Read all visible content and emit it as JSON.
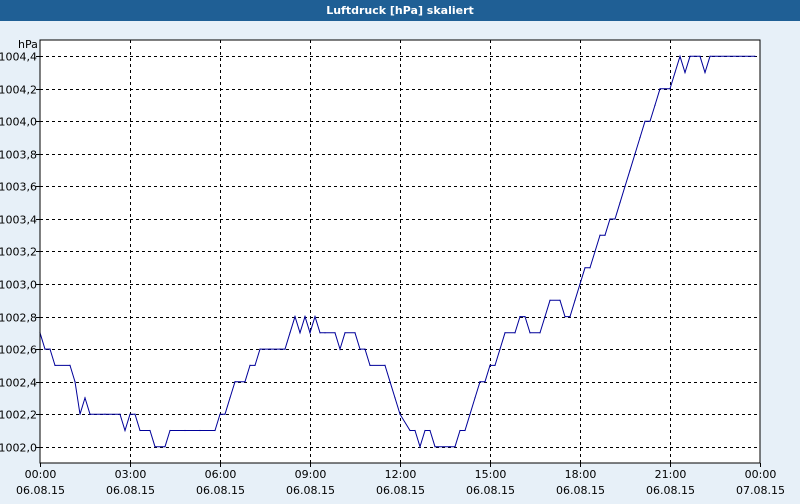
{
  "header": {
    "title": "Luftdruck [hPa] skaliert"
  },
  "colors": {
    "header_bg": "#1f5f95",
    "page_bg": "#e7f0f8",
    "plot_bg": "#ffffff",
    "line": "#00009a",
    "grid": "#000000"
  },
  "chart_data": {
    "type": "line",
    "title": "Luftdruck [hPa] skaliert",
    "ylabel": "hPa",
    "xlabel": "",
    "ylim": [
      1001.9,
      1004.5
    ],
    "xlim": [
      "06.08.15 00:00",
      "07.08.15 00:00"
    ],
    "grid": true,
    "y_ticks": [
      "1002,0",
      "1002,2",
      "1002,4",
      "1002,6",
      "1002,8",
      "1003,0",
      "1003,2",
      "1003,4",
      "1003,6",
      "1003,8",
      "1004,0",
      "1004,2",
      "1004,4"
    ],
    "y_tick_values": [
      1002.0,
      1002.2,
      1002.4,
      1002.6,
      1002.8,
      1003.0,
      1003.2,
      1003.4,
      1003.6,
      1003.8,
      1004.0,
      1004.2,
      1004.4
    ],
    "x_ticks": [
      {
        "time": "00:00",
        "date": "06.08.15"
      },
      {
        "time": "03:00",
        "date": "06.08.15"
      },
      {
        "time": "06:00",
        "date": "06.08.15"
      },
      {
        "time": "09:00",
        "date": "06.08.15"
      },
      {
        "time": "12:00",
        "date": "06.08.15"
      },
      {
        "time": "15:00",
        "date": "06.08.15"
      },
      {
        "time": "18:00",
        "date": "06.08.15"
      },
      {
        "time": "21:00",
        "date": "06.08.15"
      },
      {
        "time": "00:00",
        "date": "07.08.15"
      }
    ],
    "x_tick_values": [
      "06.08.15 00:00",
      "06.08.15 03:00",
      "06.08.15 06:00",
      "06.08.15 09:00",
      "06.08.15 12:00",
      "06.08.15 15:00",
      "06.08.15 18:00",
      "06.08.15 21:00",
      "07.08.15 00:00"
    ],
    "series": [
      {
        "color": "#00009a",
        "points": [
          [
            "06.08.15 00:00",
            1002.7
          ],
          [
            "06.08.15 00:10",
            1002.6
          ],
          [
            "06.08.15 00:20",
            1002.6
          ],
          [
            "06.08.15 00:30",
            1002.5
          ],
          [
            "06.08.15 01:00",
            1002.5
          ],
          [
            "06.08.15 01:10",
            1002.4
          ],
          [
            "06.08.15 01:20",
            1002.2
          ],
          [
            "06.08.15 01:30",
            1002.3
          ],
          [
            "06.08.15 01:40",
            1002.2
          ],
          [
            "06.08.15 02:10",
            1002.2
          ],
          [
            "06.08.15 02:40",
            1002.2
          ],
          [
            "06.08.15 02:50",
            1002.1
          ],
          [
            "06.08.15 03:00",
            1002.2
          ],
          [
            "06.08.15 03:10",
            1002.2
          ],
          [
            "06.08.15 03:20",
            1002.1
          ],
          [
            "06.08.15 03:40",
            1002.1
          ],
          [
            "06.08.15 03:50",
            1002.0
          ],
          [
            "06.08.15 04:10",
            1002.0
          ],
          [
            "06.08.15 04:20",
            1002.1
          ],
          [
            "06.08.15 04:50",
            1002.1
          ],
          [
            "06.08.15 05:20",
            1002.1
          ],
          [
            "06.08.15 05:50",
            1002.1
          ],
          [
            "06.08.15 06:00",
            1002.2
          ],
          [
            "06.08.15 06:10",
            1002.2
          ],
          [
            "06.08.15 06:20",
            1002.3
          ],
          [
            "06.08.15 06:30",
            1002.4
          ],
          [
            "06.08.15 06:50",
            1002.4
          ],
          [
            "06.08.15 07:00",
            1002.5
          ],
          [
            "06.08.15 07:10",
            1002.5
          ],
          [
            "06.08.15 07:20",
            1002.6
          ],
          [
            "06.08.15 07:40",
            1002.6
          ],
          [
            "06.08.15 08:00",
            1002.6
          ],
          [
            "06.08.15 08:10",
            1002.6
          ],
          [
            "06.08.15 08:20",
            1002.7
          ],
          [
            "06.08.15 08:30",
            1002.8
          ],
          [
            "06.08.15 08:40",
            1002.7
          ],
          [
            "06.08.15 08:50",
            1002.8
          ],
          [
            "06.08.15 09:00",
            1002.7
          ],
          [
            "06.08.15 09:10",
            1002.8
          ],
          [
            "06.08.15 09:20",
            1002.7
          ],
          [
            "06.08.15 09:30",
            1002.7
          ],
          [
            "06.08.15 09:50",
            1002.7
          ],
          [
            "06.08.15 10:00",
            1002.6
          ],
          [
            "06.08.15 10:10",
            1002.7
          ],
          [
            "06.08.15 10:30",
            1002.7
          ],
          [
            "06.08.15 10:40",
            1002.6
          ],
          [
            "06.08.15 10:50",
            1002.6
          ],
          [
            "06.08.15 11:00",
            1002.5
          ],
          [
            "06.08.15 11:30",
            1002.5
          ],
          [
            "06.08.15 11:40",
            1002.4
          ],
          [
            "06.08.15 11:50",
            1002.3
          ],
          [
            "06.08.15 12:00",
            1002.2
          ],
          [
            "06.08.15 12:20",
            1002.1
          ],
          [
            "06.08.15 12:30",
            1002.1
          ],
          [
            "06.08.15 12:40",
            1002.0
          ],
          [
            "06.08.15 12:50",
            1002.1
          ],
          [
            "06.08.15 13:00",
            1002.1
          ],
          [
            "06.08.15 13:10",
            1002.0
          ],
          [
            "06.08.15 13:40",
            1002.0
          ],
          [
            "06.08.15 13:50",
            1002.0
          ],
          [
            "06.08.15 14:00",
            1002.1
          ],
          [
            "06.08.15 14:10",
            1002.1
          ],
          [
            "06.08.15 14:20",
            1002.2
          ],
          [
            "06.08.15 14:30",
            1002.3
          ],
          [
            "06.08.15 14:40",
            1002.4
          ],
          [
            "06.08.15 14:50",
            1002.4
          ],
          [
            "06.08.15 15:00",
            1002.5
          ],
          [
            "06.08.15 15:10",
            1002.5
          ],
          [
            "06.08.15 15:20",
            1002.6
          ],
          [
            "06.08.15 15:30",
            1002.7
          ],
          [
            "06.08.15 15:50",
            1002.7
          ],
          [
            "06.08.15 16:00",
            1002.8
          ],
          [
            "06.08.15 16:10",
            1002.8
          ],
          [
            "06.08.15 16:20",
            1002.7
          ],
          [
            "06.08.15 16:40",
            1002.7
          ],
          [
            "06.08.15 16:50",
            1002.8
          ],
          [
            "06.08.15 17:00",
            1002.9
          ],
          [
            "06.08.15 17:20",
            1002.9
          ],
          [
            "06.08.15 17:30",
            1002.8
          ],
          [
            "06.08.15 17:40",
            1002.8
          ],
          [
            "06.08.15 17:50",
            1002.9
          ],
          [
            "06.08.15 18:00",
            1003.0
          ],
          [
            "06.08.15 18:10",
            1003.1
          ],
          [
            "06.08.15 18:20",
            1003.1
          ],
          [
            "06.08.15 18:30",
            1003.2
          ],
          [
            "06.08.15 18:40",
            1003.3
          ],
          [
            "06.08.15 18:50",
            1003.3
          ],
          [
            "06.08.15 19:00",
            1003.4
          ],
          [
            "06.08.15 19:10",
            1003.4
          ],
          [
            "06.08.15 19:20",
            1003.5
          ],
          [
            "06.08.15 19:30",
            1003.6
          ],
          [
            "06.08.15 19:40",
            1003.7
          ],
          [
            "06.08.15 19:50",
            1003.8
          ],
          [
            "06.08.15 20:00",
            1003.9
          ],
          [
            "06.08.15 20:10",
            1004.0
          ],
          [
            "06.08.15 20:20",
            1004.0
          ],
          [
            "06.08.15 20:30",
            1004.1
          ],
          [
            "06.08.15 20:40",
            1004.2
          ],
          [
            "06.08.15 20:50",
            1004.2
          ],
          [
            "06.08.15 21:00",
            1004.2
          ],
          [
            "06.08.15 21:10",
            1004.3
          ],
          [
            "06.08.15 21:20",
            1004.4
          ],
          [
            "06.08.15 21:30",
            1004.3
          ],
          [
            "06.08.15 21:40",
            1004.4
          ],
          [
            "06.08.15 21:50",
            1004.4
          ],
          [
            "06.08.15 22:00",
            1004.4
          ],
          [
            "06.08.15 22:10",
            1004.3
          ],
          [
            "06.08.15 22:20",
            1004.4
          ],
          [
            "06.08.15 23:50",
            1004.4
          ]
        ]
      }
    ]
  }
}
